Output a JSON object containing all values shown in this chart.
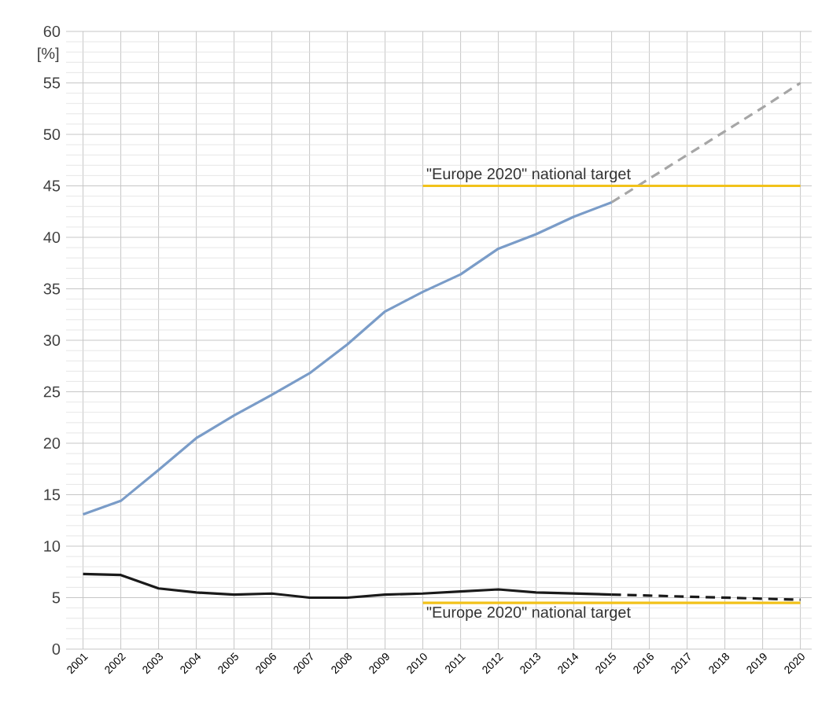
{
  "chart_data": {
    "type": "line",
    "ylabel": "[%]",
    "categories": [
      "2001",
      "2002",
      "2003",
      "2004",
      "2005",
      "2006",
      "2007",
      "2008",
      "2009",
      "2010",
      "2011",
      "2012",
      "2013",
      "2014",
      "2015",
      "2016",
      "2017",
      "2018",
      "2019",
      "2020"
    ],
    "series": [
      {
        "color": "#7a9cc8",
        "line_style": "solid",
        "values": [
          13.1,
          14.4,
          17.4,
          20.5,
          22.7,
          24.7,
          26.8,
          29.6,
          32.8,
          34.7,
          36.4,
          38.9,
          40.3,
          42.0,
          43.4,
          null,
          null,
          null,
          null,
          null
        ]
      },
      {
        "color": "#a6a6a6",
        "line_style": "dashed",
        "values": [
          null,
          null,
          null,
          null,
          null,
          null,
          null,
          null,
          null,
          null,
          null,
          null,
          null,
          null,
          43.4,
          45.7,
          48.0,
          50.3,
          52.6,
          55.0
        ]
      },
      {
        "color": "#1a1a1a",
        "line_style": "solid",
        "values": [
          7.3,
          7.2,
          5.9,
          5.5,
          5.3,
          5.4,
          5.0,
          5.0,
          5.3,
          5.4,
          5.6,
          5.8,
          5.5,
          5.4,
          5.3,
          null,
          null,
          null,
          null,
          null
        ]
      },
      {
        "color": "#1a1a1a",
        "line_style": "dashed",
        "values": [
          null,
          null,
          null,
          null,
          null,
          null,
          null,
          null,
          null,
          null,
          null,
          null,
          null,
          null,
          5.3,
          5.2,
          5.1,
          5.0,
          4.9,
          4.8
        ]
      },
      {
        "color": "#f2c21a",
        "line_style": "solid",
        "values": [
          null,
          null,
          null,
          null,
          null,
          null,
          null,
          null,
          null,
          45,
          45,
          45,
          45,
          45,
          45,
          45,
          45,
          45,
          45,
          45
        ]
      },
      {
        "color": "#f2c21a",
        "line_style": "solid",
        "values": [
          null,
          null,
          null,
          null,
          null,
          null,
          null,
          null,
          null,
          4.5,
          4.5,
          4.5,
          4.5,
          4.5,
          4.5,
          4.5,
          4.5,
          4.5,
          4.5,
          4.5
        ]
      }
    ],
    "ylim": [
      0,
      60
    ],
    "yticks": [
      0,
      5,
      10,
      15,
      20,
      25,
      30,
      35,
      40,
      45,
      50,
      55,
      60
    ],
    "grid": true,
    "annotations": [
      {
        "text": "\"Europe 2020\" national target",
        "x": "2010",
        "y": 45
      },
      {
        "text": "\"Europe 2020\" national target",
        "x": "2010",
        "y": 4.5
      }
    ]
  }
}
